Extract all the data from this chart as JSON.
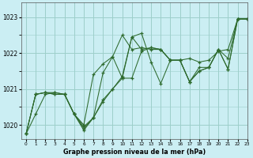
{
  "title": "Graphe pression niveau de la mer (hPa)",
  "bg_color": "#cbeef3",
  "grid_color": "#9dcfca",
  "line_color": "#2d6a2d",
  "xlim": [
    -0.5,
    23
  ],
  "ylim": [
    1019.6,
    1023.4
  ],
  "yticks": [
    1020,
    1021,
    1022,
    1023
  ],
  "xticks": [
    0,
    1,
    2,
    3,
    4,
    5,
    6,
    7,
    8,
    9,
    10,
    11,
    12,
    13,
    14,
    15,
    16,
    17,
    18,
    19,
    20,
    21,
    22,
    23
  ],
  "series": [
    [
      1019.75,
      1020.3,
      1020.85,
      1020.9,
      1020.85,
      1020.3,
      1019.85,
      1020.2,
      1020.7,
      1021.0,
      1021.35,
      1022.45,
      1022.1,
      1022.15,
      1022.1,
      1021.8,
      1021.8,
      1021.85,
      1021.75,
      1021.8,
      1022.05,
      1022.1,
      1022.95,
      1022.95
    ],
    [
      1019.75,
      1020.85,
      1020.9,
      1020.9,
      1020.85,
      1020.3,
      1020.0,
      1021.4,
      1021.7,
      1021.9,
      1022.5,
      1022.1,
      1022.15,
      1022.1,
      1022.1,
      1021.8,
      1021.8,
      1021.2,
      1021.6,
      1021.6,
      1022.1,
      1021.85,
      1022.95,
      1022.95
    ],
    [
      1019.75,
      1020.85,
      1020.9,
      1020.85,
      1020.85,
      1020.3,
      1019.95,
      1020.2,
      1021.45,
      1021.9,
      1021.3,
      1021.3,
      1022.05,
      1022.15,
      1022.1,
      1021.8,
      1021.8,
      1021.2,
      1021.5,
      1021.6,
      1022.1,
      1021.55,
      1022.95,
      1022.95
    ],
    [
      1019.75,
      1020.85,
      1020.9,
      1020.85,
      1020.85,
      1020.3,
      1019.9,
      1020.2,
      1020.65,
      1021.0,
      1021.3,
      1022.45,
      1022.55,
      1021.75,
      1021.15,
      1021.8,
      1021.8,
      1021.2,
      1021.5,
      1021.6,
      1022.1,
      1021.55,
      1022.95,
      1022.95
    ]
  ]
}
